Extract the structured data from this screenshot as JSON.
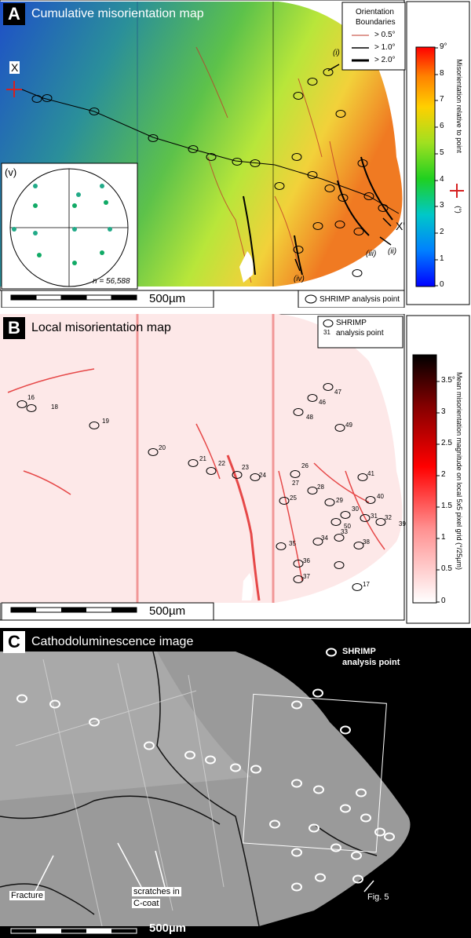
{
  "panel_a": {
    "letter": "A",
    "title": "Cumulative misorientation map",
    "legend_title_1": "Orientation",
    "legend_title_2": "Boundaries",
    "legend_items": [
      "> 0.5°",
      "> 1.0°",
      "> 2.0°"
    ],
    "colorbar_ticks": [
      "9°",
      "8",
      "7",
      "6",
      "5",
      "4",
      "3",
      "2",
      "1",
      "0"
    ],
    "colorbar_label_1": "Misorientation relative to point",
    "colorbar_label_2": "(°)",
    "marker_x": "X",
    "marker_x_prime": "X'",
    "annotations": [
      "(i)",
      "(ii)",
      "(iii)",
      "(iv)",
      "(v)"
    ],
    "pole_figure_n": "n = 56,588",
    "scale": "500µm",
    "shrimp_legend": "SHRIMP analysis point"
  },
  "panel_b": {
    "letter": "B",
    "title": "Local misorientation map",
    "shrimp_legend_1": "SHRIMP",
    "shrimp_legend_2": "analysis point",
    "shrimp_legend_num": "31",
    "colorbar_ticks": [
      "3.5°",
      "3",
      "2.5",
      "2",
      "1.5",
      "1",
      "0.5",
      "0"
    ],
    "colorbar_label": "Mean misorientation magnitude on local 5x5 pixel grid (°/25µm)",
    "point_labels": [
      "16",
      "18",
      "19",
      "20",
      "21",
      "22",
      "23",
      "24",
      "25",
      "26",
      "27",
      "28",
      "29",
      "30",
      "31",
      "32",
      "33",
      "34",
      "35",
      "36",
      "37",
      "38",
      "39",
      "40",
      "41",
      "46",
      "47",
      "48",
      "49",
      "50",
      "17"
    ],
    "scale": "500µm"
  },
  "panel_c": {
    "letter": "C",
    "title": "Cathodoluminescence image",
    "shrimp_legend_1": "SHRIMP",
    "shrimp_legend_2": "analysis point",
    "fracture": "Fracture",
    "scratches_1": "scratches in",
    "scratches_2": "C-coat",
    "fig_ref": "Fig. 5",
    "scale": "500µm"
  },
  "colors": {
    "boundary_05": "#c0392b",
    "boundary_1": "#000000",
    "local_max": "#000000",
    "local_mid": "#e00000",
    "local_min": "#ffffff"
  }
}
